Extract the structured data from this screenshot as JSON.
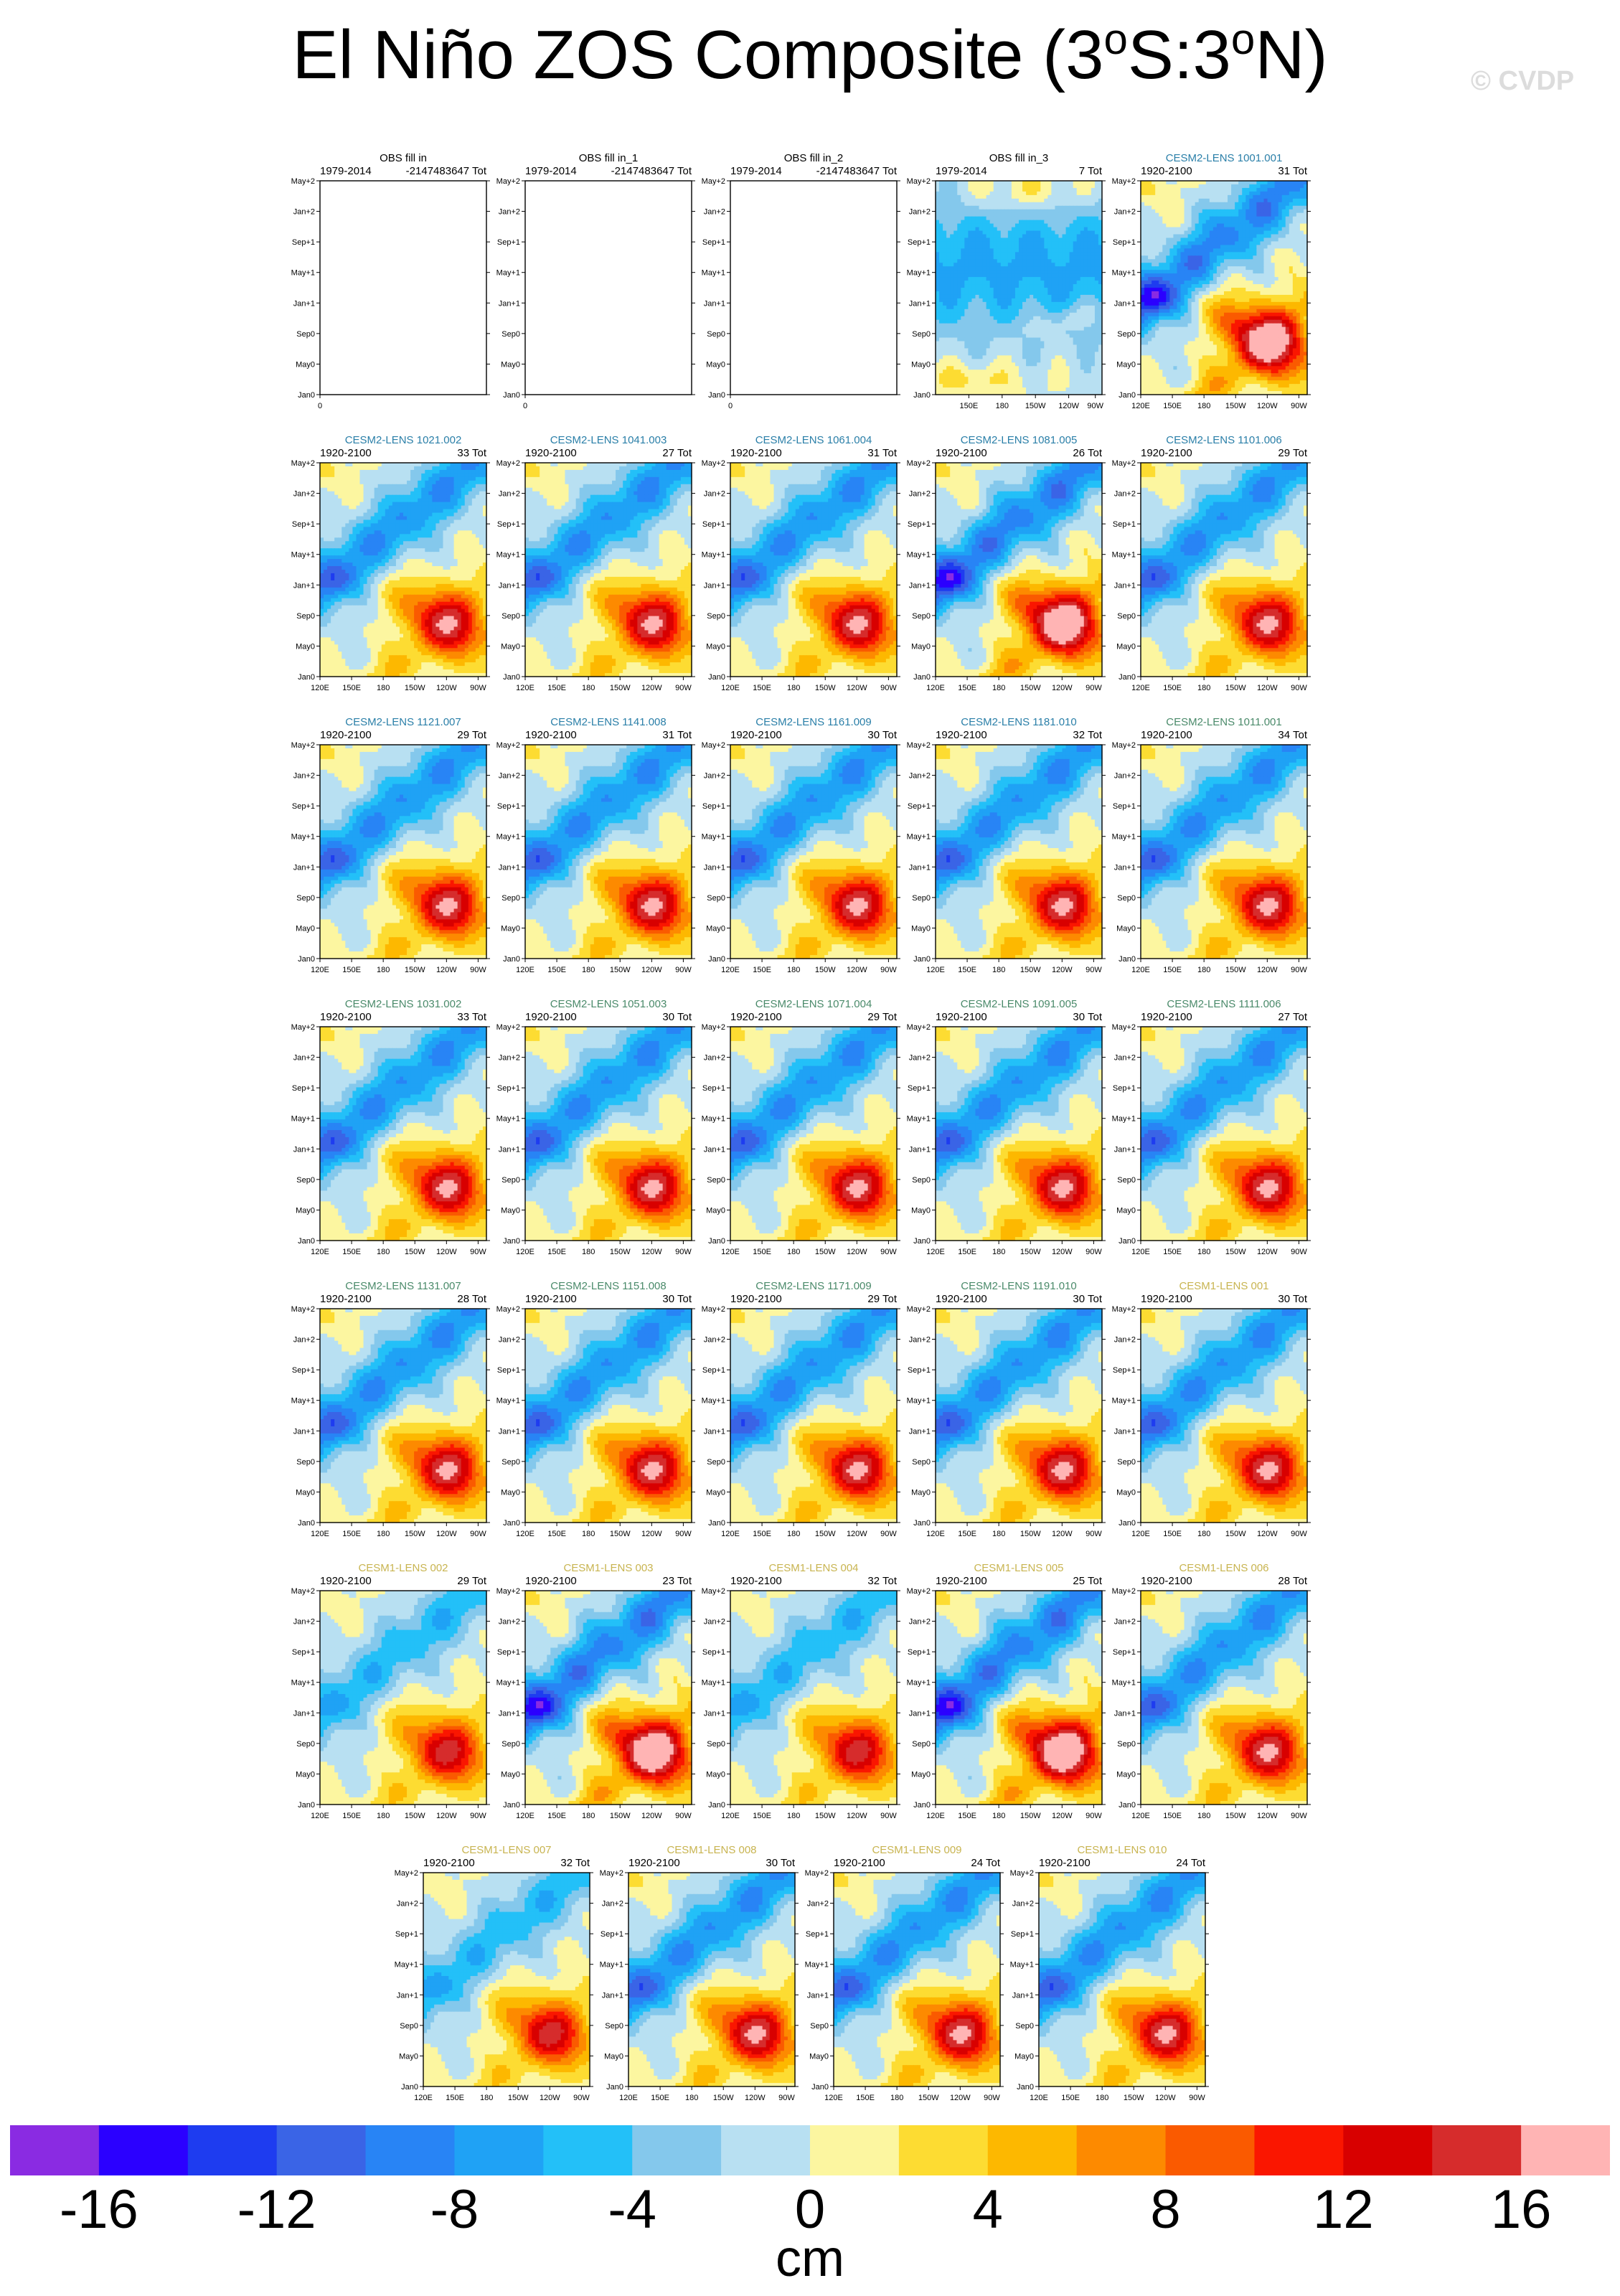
{
  "title": {
    "text": "El Niño ZOS Composite (3",
    "deg1": "o",
    "mid": "S:3",
    "deg2": "o",
    "end": "N)"
  },
  "watermark": "© CVDP",
  "axes": {
    "y_ticks": [
      "May+2",
      "Jan+2",
      "Sep+1",
      "May+1",
      "Jan+1",
      "Sep0",
      "May0",
      "Jan0"
    ],
    "x_ticks": [
      "120E",
      "150E",
      "180",
      "150W",
      "120W",
      "90W"
    ],
    "obs3_x_ticks": [
      "150E",
      "180",
      "150W",
      "120W",
      "90W"
    ],
    "empty_x_tick": "0"
  },
  "colorbar": {
    "colors": [
      "#8a2be2",
      "#2b00ff",
      "#1e3cf0",
      "#3a64e6",
      "#2884f5",
      "#1fa2f5",
      "#23c0f8",
      "#84c8ec",
      "#b8e0f2",
      "#fcf6a0",
      "#fddc32",
      "#fdb800",
      "#fd8a00",
      "#fa5a00",
      "#fa1600",
      "#d80000",
      "#d62c2c",
      "#ffb4b4"
    ],
    "labels": [
      "-16",
      "-12",
      "-8",
      "-4",
      "0",
      "4",
      "8",
      "12",
      "16"
    ],
    "units": "cm"
  },
  "chart_data": {
    "type": "heatmap",
    "title": "El Niño ZOS Composite (3oS:3oN)",
    "xlabel": "",
    "ylabel": "",
    "xlim": [
      "120E",
      "90W"
    ],
    "ylim": [
      "Jan0",
      "May+2"
    ],
    "colorbar_levels": [
      -16,
      -14,
      -12,
      -10,
      -8,
      -6,
      -4,
      -2,
      0,
      2,
      4,
      6,
      8,
      10,
      12,
      14,
      16
    ],
    "units": "cm",
    "panels": [
      {
        "name": "OBS fill in",
        "period": "1979-2014",
        "total": "-2147483647 Tot",
        "style": "empty"
      },
      {
        "name": "OBS fill in_1",
        "period": "1979-2014",
        "total": "-2147483647 Tot",
        "style": "empty"
      },
      {
        "name": "OBS fill in_2",
        "period": "1979-2014",
        "total": "-2147483647 Tot",
        "style": "empty"
      },
      {
        "name": "OBS fill in_3",
        "period": "1979-2014",
        "total": "7 Tot",
        "style": "obs"
      },
      {
        "name": "CESM2-LENS 1001.001",
        "period": "1920-2100",
        "total": "31 Tot",
        "style": "strong",
        "color": "#2a7fa8"
      },
      {
        "name": "CESM2-LENS 1021.002",
        "period": "1920-2100",
        "total": "33 Tot",
        "style": "medium",
        "color": "#2a7fa8"
      },
      {
        "name": "CESM2-LENS 1041.003",
        "period": "1920-2100",
        "total": "27 Tot",
        "style": "medium",
        "color": "#2a7fa8"
      },
      {
        "name": "CESM2-LENS 1061.004",
        "period": "1920-2100",
        "total": "31 Tot",
        "style": "medium",
        "color": "#2a7fa8"
      },
      {
        "name": "CESM2-LENS 1081.005",
        "period": "1920-2100",
        "total": "26 Tot",
        "style": "strong",
        "color": "#2a7fa8"
      },
      {
        "name": "CESM2-LENS 1101.006",
        "period": "1920-2100",
        "total": "29 Tot",
        "style": "medium",
        "color": "#2a7fa8"
      },
      {
        "name": "CESM2-LENS 1121.007",
        "period": "1920-2100",
        "total": "29 Tot",
        "style": "medium",
        "color": "#2a7fa8"
      },
      {
        "name": "CESM2-LENS 1141.008",
        "period": "1920-2100",
        "total": "31 Tot",
        "style": "medium",
        "color": "#2a7fa8"
      },
      {
        "name": "CESM2-LENS 1161.009",
        "period": "1920-2100",
        "total": "30 Tot",
        "style": "medium",
        "color": "#2a7fa8"
      },
      {
        "name": "CESM2-LENS 1181.010",
        "period": "1920-2100",
        "total": "32 Tot",
        "style": "medium",
        "color": "#2a7fa8"
      },
      {
        "name": "CESM2-LENS 1011.001",
        "period": "1920-2100",
        "total": "34 Tot",
        "style": "medium",
        "color": "#4a8a6a"
      },
      {
        "name": "CESM2-LENS 1031.002",
        "period": "1920-2100",
        "total": "33 Tot",
        "style": "medium",
        "color": "#4a8a6a"
      },
      {
        "name": "CESM2-LENS 1051.003",
        "period": "1920-2100",
        "total": "30 Tot",
        "style": "medium",
        "color": "#4a8a6a"
      },
      {
        "name": "CESM2-LENS 1071.004",
        "period": "1920-2100",
        "total": "29 Tot",
        "style": "medium",
        "color": "#4a8a6a"
      },
      {
        "name": "CESM2-LENS 1091.005",
        "period": "1920-2100",
        "total": "30 Tot",
        "style": "medium",
        "color": "#4a8a6a"
      },
      {
        "name": "CESM2-LENS 1111.006",
        "period": "1920-2100",
        "total": "27 Tot",
        "style": "medium",
        "color": "#4a8a6a"
      },
      {
        "name": "CESM2-LENS 1131.007",
        "period": "1920-2100",
        "total": "28 Tot",
        "style": "medium",
        "color": "#4a8a6a"
      },
      {
        "name": "CESM2-LENS 1151.008",
        "period": "1920-2100",
        "total": "30 Tot",
        "style": "medium",
        "color": "#4a8a6a"
      },
      {
        "name": "CESM2-LENS 1171.009",
        "period": "1920-2100",
        "total": "29 Tot",
        "style": "medium",
        "color": "#4a8a6a"
      },
      {
        "name": "CESM2-LENS 1191.010",
        "period": "1920-2100",
        "total": "30 Tot",
        "style": "medium",
        "color": "#4a8a6a"
      },
      {
        "name": "CESM1-LENS 001",
        "period": "1920-2100",
        "total": "30 Tot",
        "style": "medium",
        "color": "#c8b450"
      },
      {
        "name": "CESM1-LENS 002",
        "period": "1920-2100",
        "total": "29 Tot",
        "style": "weak",
        "color": "#c8b450"
      },
      {
        "name": "CESM1-LENS 003",
        "period": "1920-2100",
        "total": "23 Tot",
        "style": "strong",
        "color": "#c8b450"
      },
      {
        "name": "CESM1-LENS 004",
        "period": "1920-2100",
        "total": "32 Tot",
        "style": "weak",
        "color": "#c8b450"
      },
      {
        "name": "CESM1-LENS 005",
        "period": "1920-2100",
        "total": "25 Tot",
        "style": "strong",
        "color": "#c8b450"
      },
      {
        "name": "CESM1-LENS 006",
        "period": "1920-2100",
        "total": "28 Tot",
        "style": "medium",
        "color": "#c8b450"
      },
      {
        "name": "CESM1-LENS 007",
        "period": "1920-2100",
        "total": "32 Tot",
        "style": "weak",
        "color": "#c8b450"
      },
      {
        "name": "CESM1-LENS 008",
        "period": "1920-2100",
        "total": "30 Tot",
        "style": "medium",
        "color": "#c8b450"
      },
      {
        "name": "CESM1-LENS 009",
        "period": "1920-2100",
        "total": "24 Tot",
        "style": "medium",
        "color": "#c8b450"
      },
      {
        "name": "CESM1-LENS 010",
        "period": "1920-2100",
        "total": "24 Tot",
        "style": "medium",
        "color": "#c8b450"
      }
    ]
  }
}
